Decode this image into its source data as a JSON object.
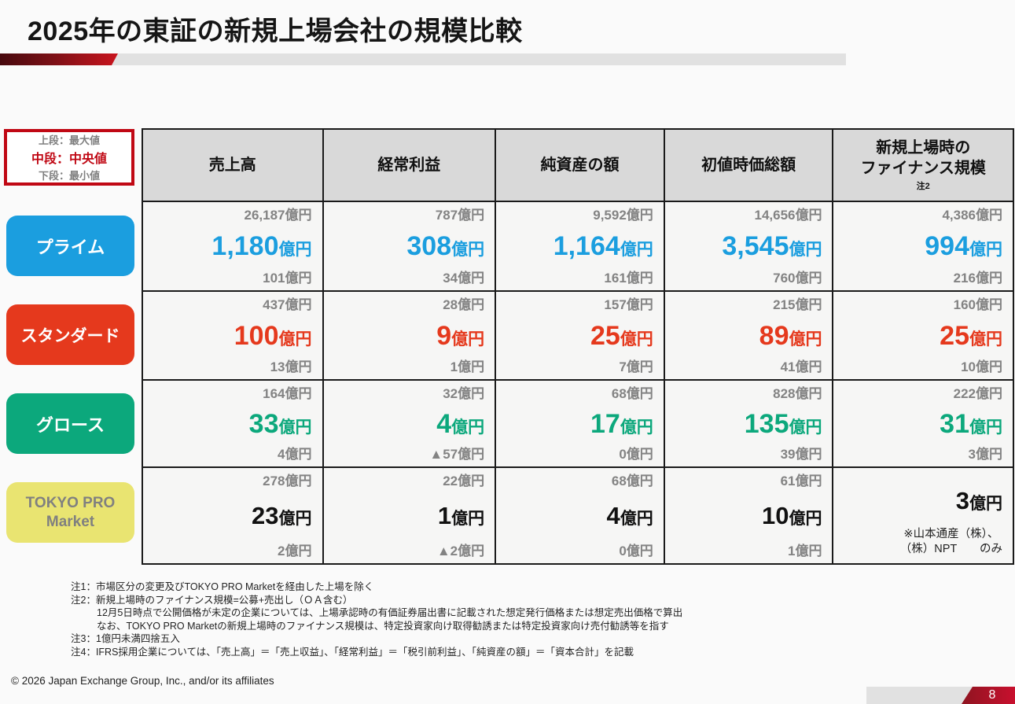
{
  "slide": {
    "title": "2025年の東証の新規上場会社の規模比較",
    "copyright": "© 2026 Japan Exchange Group, Inc., and/or its affiliates",
    "page_number": "8"
  },
  "legend": {
    "line_top": "上段：最大値",
    "line_mid": "中段：中央値",
    "line_bottom": "下段：最小値"
  },
  "markets": [
    {
      "label": "プライム",
      "color": "#1b9edf"
    },
    {
      "label": "スタンダード",
      "color": "#e5391d"
    },
    {
      "label": "グロース",
      "color": "#0ca87c"
    },
    {
      "label": "TOKYO PRO Market",
      "color": "#e9e471"
    }
  ],
  "table": {
    "columns": [
      {
        "title": "売上高"
      },
      {
        "title": "経常利益"
      },
      {
        "title": "純資産の額"
      },
      {
        "title": "初値時価総額"
      },
      {
        "title": "新規上場時の\nファイナンス規模",
        "note": "注2"
      }
    ],
    "rows": [
      {
        "market": "プライム",
        "cells": [
          {
            "max": "26,187億円",
            "med": "1,180",
            "unit": "億円",
            "min": "101億円"
          },
          {
            "max": "787億円",
            "med": "308",
            "unit": "億円",
            "min": "34億円"
          },
          {
            "max": "9,592億円",
            "med": "1,164",
            "unit": "億円",
            "min": "161億円"
          },
          {
            "max": "14,656億円",
            "med": "3,545",
            "unit": "億円",
            "min": "760億円"
          },
          {
            "max": "4,386億円",
            "med": "994",
            "unit": "億円",
            "min": "216億円"
          }
        ]
      },
      {
        "market": "スタンダード",
        "cells": [
          {
            "max": "437億円",
            "med": "100",
            "unit": "億円",
            "min": "13億円"
          },
          {
            "max": "28億円",
            "med": "9",
            "unit": "億円",
            "min": "1億円"
          },
          {
            "max": "157億円",
            "med": "25",
            "unit": "億円",
            "min": "7億円"
          },
          {
            "max": "215億円",
            "med": "89",
            "unit": "億円",
            "min": "41億円"
          },
          {
            "max": "160億円",
            "med": "25",
            "unit": "億円",
            "min": "10億円"
          }
        ]
      },
      {
        "market": "グロース",
        "cells": [
          {
            "max": "164億円",
            "med": "33",
            "unit": "億円",
            "min": "4億円"
          },
          {
            "max": "32億円",
            "med": "4",
            "unit": "億円",
            "min": "▲57億円"
          },
          {
            "max": "68億円",
            "med": "17",
            "unit": "億円",
            "min": "0億円"
          },
          {
            "max": "828億円",
            "med": "135",
            "unit": "億円",
            "min": "39億円"
          },
          {
            "max": "222億円",
            "med": "31",
            "unit": "億円",
            "min": "3億円"
          }
        ]
      },
      {
        "market": "TOKYO PRO Market",
        "cells": [
          {
            "max": "278億円",
            "med": "23",
            "unit": "億円",
            "min": "2億円"
          },
          {
            "max": "22億円",
            "med": "1",
            "unit": "億円",
            "min": "▲2億円"
          },
          {
            "max": "68億円",
            "med": "4",
            "unit": "億円",
            "min": "0億円"
          },
          {
            "max": "61億円",
            "med": "10",
            "unit": "億円",
            "min": "1億円"
          },
          {
            "med": "3",
            "unit": "億円",
            "note_line1": "※山本通産（株）、",
            "note_line2": "（株）NPT　　のみ"
          }
        ]
      }
    ]
  },
  "footnotes": [
    {
      "text": "注1：市場区分の変更及びTOKYO PRO Marketを経由した上場を除く"
    },
    {
      "text": "注2：新規上場時のファイナンス規模=公募+売出し（ＯＡ含む）"
    },
    {
      "text": "12月5日時点で公開価格が未定の企業については、上場承認時の有価証券届出書に記載された想定発行価格または想定売出価格で算出"
    },
    {
      "text": "なお、TOKYO PRO Marketの新規上場時のファイナンス規模は、特定投資家向け取得勧誘または特定投資家向け売付勧誘等を指す"
    },
    {
      "text": "注3：1億円未満四捨五入"
    },
    {
      "text": "注4：IFRS採用企業については、「売上高」＝「売上収益」、「経常利益」＝「税引前利益」、「純資産の額」＝「資本合計」を記載"
    }
  ],
  "colors": {
    "prime_blue": "#1b9edf",
    "standard_red": "#e5391d",
    "growth_green": "#0ca87c",
    "tpm_yellow": "#e9e471",
    "legend_red": "#c00814",
    "header_gray": "#d9d9d9",
    "muted_gray": "#838383"
  }
}
